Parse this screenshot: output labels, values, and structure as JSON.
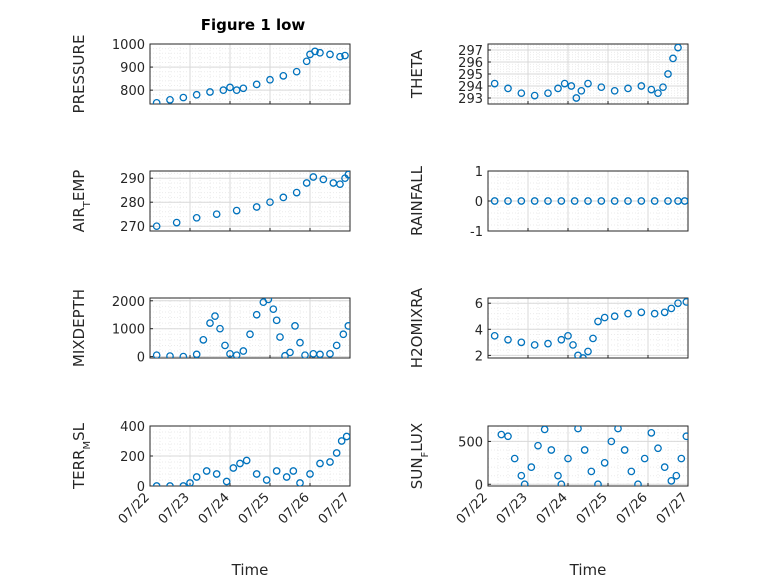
{
  "figure": {
    "title": "Figure 1 low",
    "marker_color": "#0072BD",
    "grid": "major+minor dotted"
  },
  "chart_data": [
    {
      "type": "scatter",
      "title": "Figure 1 low",
      "ylabel": "PRESSURE",
      "ylim": [
        740,
        1000
      ],
      "yticks": [
        800,
        900,
        1000
      ],
      "xlim": [
        "07/22",
        "07/27"
      ],
      "xticklabels": [],
      "points": [
        [
          "07/22 04:00",
          745
        ],
        [
          "07/22 12:00",
          758
        ],
        [
          "07/22 20:00",
          768
        ],
        [
          "07/23 04:00",
          780
        ],
        [
          "07/23 12:00",
          792
        ],
        [
          "07/23 20:00",
          800
        ],
        [
          "07/24 00:00",
          812
        ],
        [
          "07/24 04:00",
          800
        ],
        [
          "07/24 08:00",
          808
        ],
        [
          "07/24 16:00",
          825
        ],
        [
          "07/25 00:00",
          845
        ],
        [
          "07/25 08:00",
          862
        ],
        [
          "07/25 16:00",
          880
        ],
        [
          "07/25 22:00",
          925
        ],
        [
          "07/26 00:00",
          955
        ],
        [
          "07/26 03:00",
          968
        ],
        [
          "07/26 06:00",
          962
        ],
        [
          "07/26 12:00",
          955
        ],
        [
          "07/26 18:00",
          945
        ],
        [
          "07/26 21:00",
          950
        ]
      ]
    },
    {
      "type": "scatter",
      "ylabel": "THETA",
      "ylim": [
        292.5,
        297.5
      ],
      "yticks": [
        293,
        294,
        295,
        296,
        297
      ],
      "xlim": [
        "07/22",
        "07/27"
      ],
      "xticklabels": [],
      "points": [
        [
          "07/22 04:00",
          294.2
        ],
        [
          "07/22 12:00",
          293.8
        ],
        [
          "07/22 20:00",
          293.4
        ],
        [
          "07/23 04:00",
          293.2
        ],
        [
          "07/23 12:00",
          293.4
        ],
        [
          "07/23 18:00",
          293.8
        ],
        [
          "07/23 22:00",
          294.2
        ],
        [
          "07/24 02:00",
          294.0
        ],
        [
          "07/24 05:00",
          293.0
        ],
        [
          "07/24 08:00",
          293.6
        ],
        [
          "07/24 12:00",
          294.2
        ],
        [
          "07/24 20:00",
          293.9
        ],
        [
          "07/25 04:00",
          293.6
        ],
        [
          "07/25 12:00",
          293.8
        ],
        [
          "07/25 20:00",
          294.0
        ],
        [
          "07/26 02:00",
          293.7
        ],
        [
          "07/26 06:00",
          293.4
        ],
        [
          "07/26 09:00",
          293.9
        ],
        [
          "07/26 12:00",
          295.0
        ],
        [
          "07/26 15:00",
          296.3
        ],
        [
          "07/26 18:00",
          297.2
        ]
      ]
    },
    {
      "type": "scatter",
      "ylabel": "AIR_TEMP",
      "ylim": [
        268,
        293
      ],
      "yticks": [
        270,
        280,
        290
      ],
      "xlim": [
        "07/22",
        "07/27"
      ],
      "xticklabels": [],
      "points": [
        [
          "07/22 04:00",
          270
        ],
        [
          "07/22 16:00",
          271.5
        ],
        [
          "07/23 04:00",
          273.5
        ],
        [
          "07/23 16:00",
          275
        ],
        [
          "07/24 04:00",
          276.5
        ],
        [
          "07/24 16:00",
          278
        ],
        [
          "07/25 00:00",
          280
        ],
        [
          "07/25 08:00",
          282
        ],
        [
          "07/25 16:00",
          284
        ],
        [
          "07/25 22:00",
          288
        ],
        [
          "07/26 02:00",
          290.5
        ],
        [
          "07/26 08:00",
          289.5
        ],
        [
          "07/26 14:00",
          288
        ],
        [
          "07/26 18:00",
          287.5
        ],
        [
          "07/26 21:00",
          290
        ],
        [
          "07/26 23:00",
          291.5
        ]
      ]
    },
    {
      "type": "scatter",
      "ylabel": "RAINFALL",
      "ylim": [
        -1,
        1
      ],
      "yticks": [
        -1,
        0,
        1
      ],
      "xlim": [
        "07/22",
        "07/27"
      ],
      "xticklabels": [],
      "points": [
        [
          "07/22 04:00",
          0
        ],
        [
          "07/22 12:00",
          0
        ],
        [
          "07/22 20:00",
          0
        ],
        [
          "07/23 04:00",
          0
        ],
        [
          "07/23 12:00",
          0
        ],
        [
          "07/23 20:00",
          0
        ],
        [
          "07/24 04:00",
          0
        ],
        [
          "07/24 12:00",
          0
        ],
        [
          "07/24 20:00",
          0
        ],
        [
          "07/25 04:00",
          0
        ],
        [
          "07/25 12:00",
          0
        ],
        [
          "07/25 20:00",
          0
        ],
        [
          "07/26 04:00",
          0
        ],
        [
          "07/26 12:00",
          0
        ],
        [
          "07/26 18:00",
          0
        ],
        [
          "07/26 22:00",
          0
        ]
      ]
    },
    {
      "type": "scatter",
      "ylabel": "MIXDEPTH",
      "ylim": [
        -50,
        2100
      ],
      "yticks": [
        0,
        1000,
        2000
      ],
      "xlim": [
        "07/22",
        "07/27"
      ],
      "xticklabels": [],
      "points": [
        [
          "07/22 04:00",
          50
        ],
        [
          "07/22 12:00",
          20
        ],
        [
          "07/22 20:00",
          0
        ],
        [
          "07/23 04:00",
          80
        ],
        [
          "07/23 08:00",
          600
        ],
        [
          "07/23 12:00",
          1200
        ],
        [
          "07/23 15:00",
          1450
        ],
        [
          "07/23 18:00",
          1000
        ],
        [
          "07/23 21:00",
          400
        ],
        [
          "07/24 00:00",
          100
        ],
        [
          "07/24 04:00",
          50
        ],
        [
          "07/24 08:00",
          200
        ],
        [
          "07/24 12:00",
          800
        ],
        [
          "07/24 16:00",
          1500
        ],
        [
          "07/24 20:00",
          1950
        ],
        [
          "07/24 23:00",
          2050
        ],
        [
          "07/25 02:00",
          1700
        ],
        [
          "07/25 04:00",
          1300
        ],
        [
          "07/25 06:00",
          700
        ],
        [
          "07/25 09:00",
          30
        ],
        [
          "07/25 12:00",
          150
        ],
        [
          "07/25 15:00",
          1100
        ],
        [
          "07/25 18:00",
          500
        ],
        [
          "07/25 21:00",
          50
        ],
        [
          "07/26 02:00",
          100
        ],
        [
          "07/26 06:00",
          80
        ],
        [
          "07/26 12:00",
          100
        ],
        [
          "07/26 16:00",
          400
        ],
        [
          "07/26 20:00",
          800
        ],
        [
          "07/26 23:00",
          1100
        ]
      ]
    },
    {
      "type": "scatter",
      "ylabel": "H2OMIXRA",
      "ylim": [
        1.8,
        6.4
      ],
      "yticks": [
        2,
        4,
        6
      ],
      "xlim": [
        "07/22",
        "07/27"
      ],
      "xticklabels": [],
      "points": [
        [
          "07/22 04:00",
          3.5
        ],
        [
          "07/22 12:00",
          3.2
        ],
        [
          "07/22 20:00",
          3.0
        ],
        [
          "07/23 04:00",
          2.8
        ],
        [
          "07/23 12:00",
          2.9
        ],
        [
          "07/23 20:00",
          3.2
        ],
        [
          "07/24 00:00",
          3.5
        ],
        [
          "07/24 03:00",
          2.8
        ],
        [
          "07/24 06:00",
          2.0
        ],
        [
          "07/24 09:00",
          1.8
        ],
        [
          "07/24 12:00",
          2.3
        ],
        [
          "07/24 15:00",
          3.3
        ],
        [
          "07/24 18:00",
          4.6
        ],
        [
          "07/24 22:00",
          4.9
        ],
        [
          "07/25 04:00",
          5.0
        ],
        [
          "07/25 12:00",
          5.2
        ],
        [
          "07/25 20:00",
          5.3
        ],
        [
          "07/26 04:00",
          5.2
        ],
        [
          "07/26 10:00",
          5.3
        ],
        [
          "07/26 14:00",
          5.6
        ],
        [
          "07/26 18:00",
          6.0
        ],
        [
          "07/26 23:00",
          6.1
        ]
      ]
    },
    {
      "type": "scatter",
      "ylabel": "TERR_MSL",
      "ylim": [
        0,
        400
      ],
      "yticks": [
        0,
        200,
        400
      ],
      "xlim": [
        "07/22",
        "07/27"
      ],
      "xticklabels": [
        "07/22",
        "07/23",
        "07/24",
        "07/25",
        "07/26",
        "07/27"
      ],
      "xlabel": "Time",
      "points": [
        [
          "07/22 04:00",
          0
        ],
        [
          "07/22 12:00",
          0
        ],
        [
          "07/22 20:00",
          0
        ],
        [
          "07/23 00:00",
          20
        ],
        [
          "07/23 04:00",
          60
        ],
        [
          "07/23 10:00",
          100
        ],
        [
          "07/23 16:00",
          80
        ],
        [
          "07/23 22:00",
          30
        ],
        [
          "07/24 02:00",
          120
        ],
        [
          "07/24 06:00",
          150
        ],
        [
          "07/24 10:00",
          170
        ],
        [
          "07/24 16:00",
          80
        ],
        [
          "07/24 22:00",
          40
        ],
        [
          "07/25 04:00",
          100
        ],
        [
          "07/25 10:00",
          60
        ],
        [
          "07/25 14:00",
          100
        ],
        [
          "07/25 18:00",
          20
        ],
        [
          "07/26 00:00",
          80
        ],
        [
          "07/26 06:00",
          150
        ],
        [
          "07/26 12:00",
          160
        ],
        [
          "07/26 16:00",
          220
        ],
        [
          "07/26 19:00",
          300
        ],
        [
          "07/26 22:00",
          330
        ]
      ]
    },
    {
      "type": "scatter",
      "ylabel": "SUN_FLUX",
      "ylim": [
        -20,
        680
      ],
      "yticks": [
        0,
        500
      ],
      "xlim": [
        "07/22",
        "07/27"
      ],
      "xticklabels": [
        "07/22",
        "07/23",
        "07/24",
        "07/25",
        "07/26",
        "07/27"
      ],
      "xlabel": "Time",
      "points": [
        [
          "07/22 08:00",
          580
        ],
        [
          "07/22 12:00",
          560
        ],
        [
          "07/22 16:00",
          300
        ],
        [
          "07/22 20:00",
          100
        ],
        [
          "07/22 22:00",
          0
        ],
        [
          "07/23 02:00",
          200
        ],
        [
          "07/23 06:00",
          450
        ],
        [
          "07/23 10:00",
          640
        ],
        [
          "07/23 14:00",
          400
        ],
        [
          "07/23 18:00",
          100
        ],
        [
          "07/23 20:00",
          0
        ],
        [
          "07/24 00:00",
          300
        ],
        [
          "07/24 06:00",
          650
        ],
        [
          "07/24 10:00",
          400
        ],
        [
          "07/24 14:00",
          150
        ],
        [
          "07/24 18:00",
          0
        ],
        [
          "07/24 22:00",
          250
        ],
        [
          "07/25 02:00",
          500
        ],
        [
          "07/25 06:00",
          650
        ],
        [
          "07/25 10:00",
          400
        ],
        [
          "07/25 14:00",
          150
        ],
        [
          "07/25 18:00",
          0
        ],
        [
          "07/25 22:00",
          300
        ],
        [
          "07/26 02:00",
          600
        ],
        [
          "07/26 06:00",
          420
        ],
        [
          "07/26 10:00",
          200
        ],
        [
          "07/26 14:00",
          40
        ],
        [
          "07/26 17:00",
          100
        ],
        [
          "07/26 20:00",
          300
        ],
        [
          "07/26 23:00",
          560
        ]
      ]
    }
  ]
}
